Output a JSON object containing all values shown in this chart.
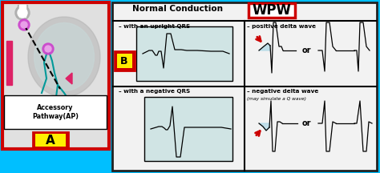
{
  "bg_color": "#00bfff",
  "left_panel_facecolor": "#dcdcdc",
  "left_border_color": "#cc0000",
  "right_panel_facecolor": "#f0f0f0",
  "right_border_color": "#222222",
  "wpw_border_color": "#cc0000",
  "title_normal": "Normal Conduction",
  "title_wpw": "WPW",
  "label_upright": "– with an upright QRS",
  "label_positive": "– positive delta wave",
  "label_negative_qrs": "– with a negative QRS",
  "label_negative_delta": "– negative delta wave",
  "label_simulate": "(may simulate a Q wave)",
  "label_or1": "or",
  "label_or2": "or",
  "label_A": "A",
  "label_B": "B",
  "label_accessory": "Accessory\nPathway(AP)",
  "ecg_box_bg": "#d0e4e4",
  "arrow_color": "#cc0000",
  "delta_highlight": "#add8e6",
  "heart_bg": "#e0e0e0",
  "heart_gray": "#b0b0b0",
  "heart_teal": "#009999",
  "heart_purple": "#cc44cc",
  "heart_pink": "#dd2266",
  "yellow_label": "#ffee00",
  "red_label": "#cc0000"
}
